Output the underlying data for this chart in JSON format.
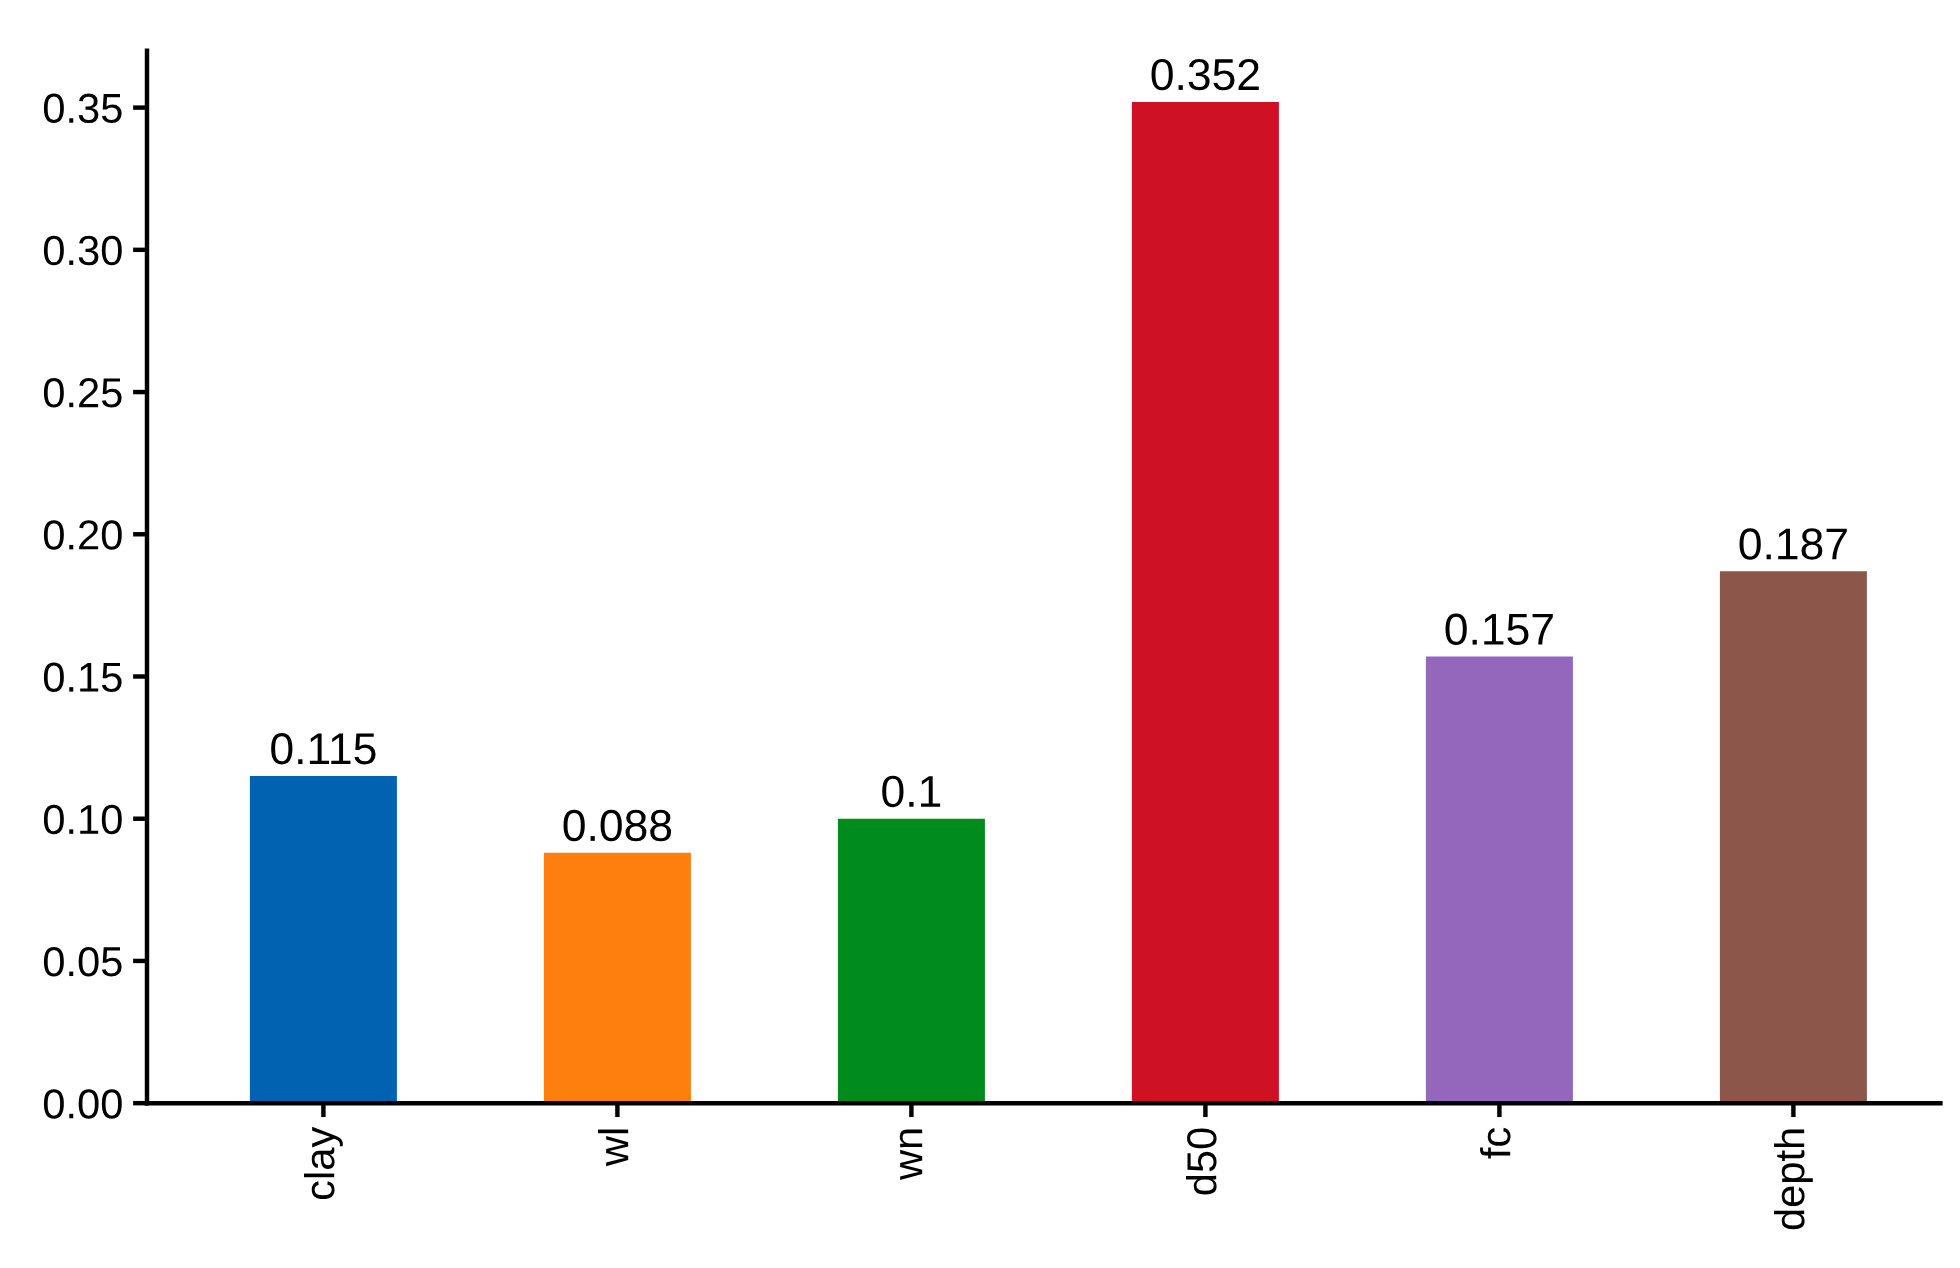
{
  "chart_data": {
    "type": "bar",
    "categories": [
      "clay",
      "wl",
      "wn",
      "d50",
      "fc",
      "depth"
    ],
    "values": [
      0.115,
      0.088,
      0.1,
      0.352,
      0.157,
      0.187
    ],
    "colors": [
      "#0062b0",
      "#ff7f0e",
      "#008c1c",
      "#cf1124",
      "#9467bd",
      "#8c564b"
    ],
    "ylim": [
      0,
      0.37
    ],
    "yticks": [
      {
        "value": 0,
        "label": "0.00"
      },
      {
        "value": 0.05,
        "label": "0.05"
      },
      {
        "value": 0.1,
        "label": "0.10"
      },
      {
        "value": 0.15,
        "label": "0.15"
      },
      {
        "value": 0.2,
        "label": "0.20"
      },
      {
        "value": 0.25,
        "label": "0.25"
      },
      {
        "value": 0.3,
        "label": "0.30"
      },
      {
        "value": 0.35,
        "label": "0.35"
      }
    ],
    "data_labels": true,
    "grid": false
  }
}
